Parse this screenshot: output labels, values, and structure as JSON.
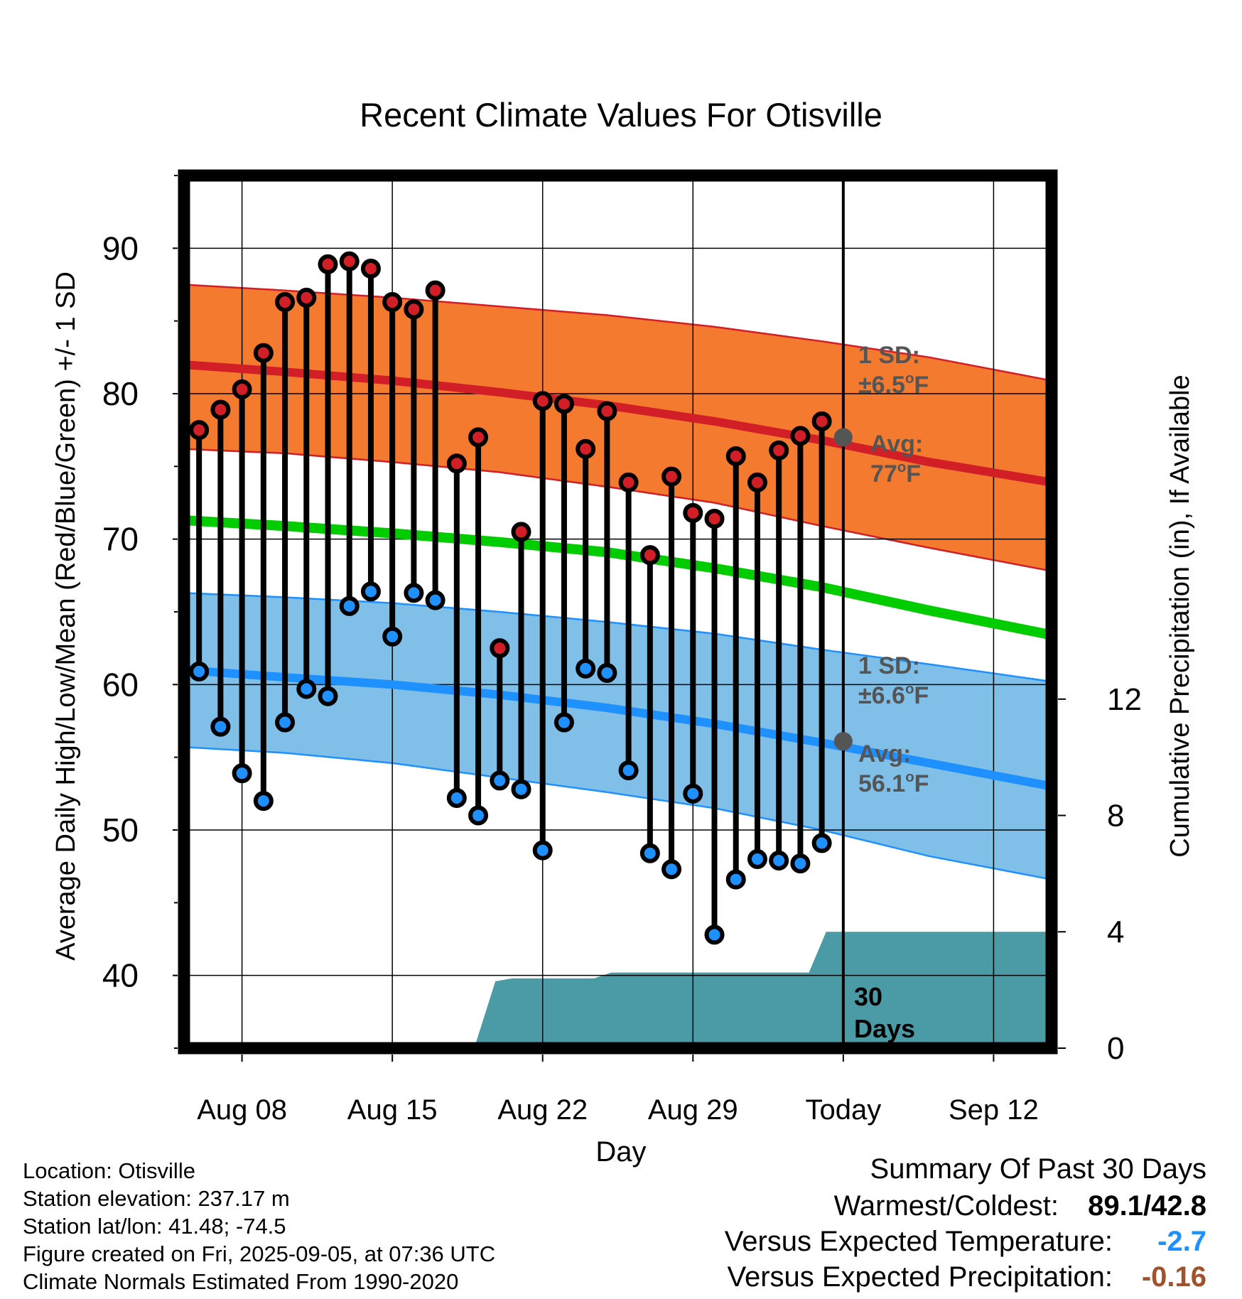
{
  "chart_data": {
    "type": "line",
    "title": "Recent Climate Values For Otisville",
    "xlabel": "Day",
    "ylabel": "Average Daily High/Low/Mean (Red/Blue/Green) +/- 1 SD",
    "y2label": "Cumulative Precipitation (in), If Available",
    "ylim": [
      35,
      95
    ],
    "y2lim": [
      0,
      30
    ],
    "yticks": [
      40,
      50,
      60,
      70,
      80,
      90
    ],
    "y2ticks": [
      0,
      4,
      8,
      12
    ],
    "xticks": [
      {
        "day": 8,
        "label": "Aug 08"
      },
      {
        "day": 15,
        "label": "Aug 15"
      },
      {
        "day": 22,
        "label": "Aug 22"
      },
      {
        "day": 29,
        "label": "Aug 29"
      },
      {
        "day": 36,
        "label": "Today"
      },
      {
        "day": 43,
        "label": "Sep 12"
      }
    ],
    "xlim": [
      5.3,
      45.7
    ],
    "grid": true,
    "today_day": 36,
    "days": [
      6,
      7,
      8,
      9,
      10,
      11,
      12,
      13,
      14,
      15,
      16,
      17,
      18,
      19,
      20,
      21,
      22,
      23,
      24,
      25,
      26,
      27,
      28,
      29,
      30,
      31,
      32,
      33,
      34,
      35
    ],
    "series": [
      {
        "name": "High",
        "color": "#d21e26",
        "values": [
          77.5,
          78.9,
          80.3,
          82.8,
          86.3,
          86.6,
          88.9,
          89.1,
          88.6,
          86.3,
          85.8,
          87.1,
          75.2,
          77.0,
          62.5,
          70.5,
          79.5,
          79.3,
          76.2,
          78.8,
          73.9,
          68.9,
          74.3,
          71.8,
          71.4,
          75.7,
          73.9,
          76.1,
          77.1,
          78.1
        ]
      },
      {
        "name": "Low",
        "color": "#1e90ff",
        "values": [
          60.9,
          57.1,
          53.9,
          52.0,
          57.4,
          59.7,
          59.2,
          65.4,
          66.4,
          63.3,
          66.3,
          65.8,
          52.2,
          51.0,
          53.4,
          52.8,
          48.6,
          57.4,
          61.1,
          60.8,
          54.1,
          48.4,
          47.3,
          52.5,
          42.8,
          46.6,
          48.0,
          47.9,
          47.7,
          49.1
        ]
      }
    ],
    "normals": {
      "x": [
        5.3,
        10,
        15,
        20,
        25,
        30,
        35,
        40,
        45.7
      ],
      "high_avg": [
        82.0,
        81.5,
        80.9,
        80.1,
        79.2,
        78.1,
        76.8,
        75.3,
        73.9
      ],
      "high_sd_upper": [
        87.5,
        87.1,
        86.6,
        86.0,
        85.4,
        84.6,
        83.6,
        82.5,
        80.9
      ],
      "high_sd_lower": [
        76.2,
        75.9,
        75.3,
        74.6,
        73.6,
        72.5,
        70.9,
        69.4,
        67.8
      ],
      "mean_avg": [
        71.3,
        70.9,
        70.4,
        69.8,
        69.1,
        68.0,
        66.7,
        65.1,
        63.4
      ],
      "low_avg": [
        61.0,
        60.5,
        60.0,
        59.3,
        58.4,
        57.3,
        56.0,
        54.6,
        53.0
      ],
      "low_sd_upper": [
        66.3,
        66.0,
        65.6,
        65.0,
        64.3,
        63.5,
        62.4,
        61.4,
        60.2
      ],
      "low_sd_lower": [
        55.7,
        55.3,
        54.6,
        53.6,
        52.6,
        51.5,
        50.0,
        48.2,
        46.6
      ],
      "high_color": "#d21e26",
      "high_band_color": "#f47a30",
      "low_color": "#1e90ff",
      "low_band_color": "#7fbfe8",
      "mean_color": "#00cc00"
    },
    "precip": {
      "color": "#4a9ba5",
      "x": [
        5.3,
        11.5,
        12.8,
        13.5,
        14.7,
        16.0,
        18.9,
        19.8,
        20.6,
        21.4,
        22.5,
        23.5,
        24.4,
        25.2,
        34.4,
        35.2,
        45.7
      ],
      "values": [
        0.0,
        0.0,
        0.02,
        0.05,
        0.1,
        0.2,
        0.2,
        2.3,
        2.4,
        2.4,
        2.4,
        2.4,
        2.4,
        2.6,
        2.6,
        4.0,
        4.0
      ]
    },
    "annotations": {
      "high_sd": "1 SD:",
      "high_sd_val": "±6.5",
      "high_avg": "Avg:",
      "high_avg_val": "77",
      "low_sd": "1 SD:",
      "low_sd_val": "±6.6",
      "low_avg": "Avg:",
      "low_avg_val": "56.1",
      "degree": "o",
      "unit": "F",
      "days_line1": "30",
      "days_line2": "Days",
      "high_avg_today": 77.0,
      "low_avg_today": 56.1
    }
  },
  "footer": {
    "location": "Location: Otisville",
    "elevation": "Station elevation: 237.17 m",
    "latlon": "Station lat/lon: 41.48; -74.5",
    "created": "Figure created on Fri, 2025-09-05, at 07:36 UTC",
    "normals": "Climate Normals Estimated From 1990-2020"
  },
  "summary": {
    "heading": "Summary Of Past 30 Days",
    "warm_cold_label": "Warmest/Coldest:",
    "warm_cold_value": "89.1/42.8",
    "temp_label": "Versus Expected Temperature:",
    "temp_value": "-2.7",
    "temp_color": "#1e90ff",
    "precip_label": "Versus Expected Precipitation:",
    "precip_value": "-0.16",
    "precip_color": "#a0522d"
  }
}
